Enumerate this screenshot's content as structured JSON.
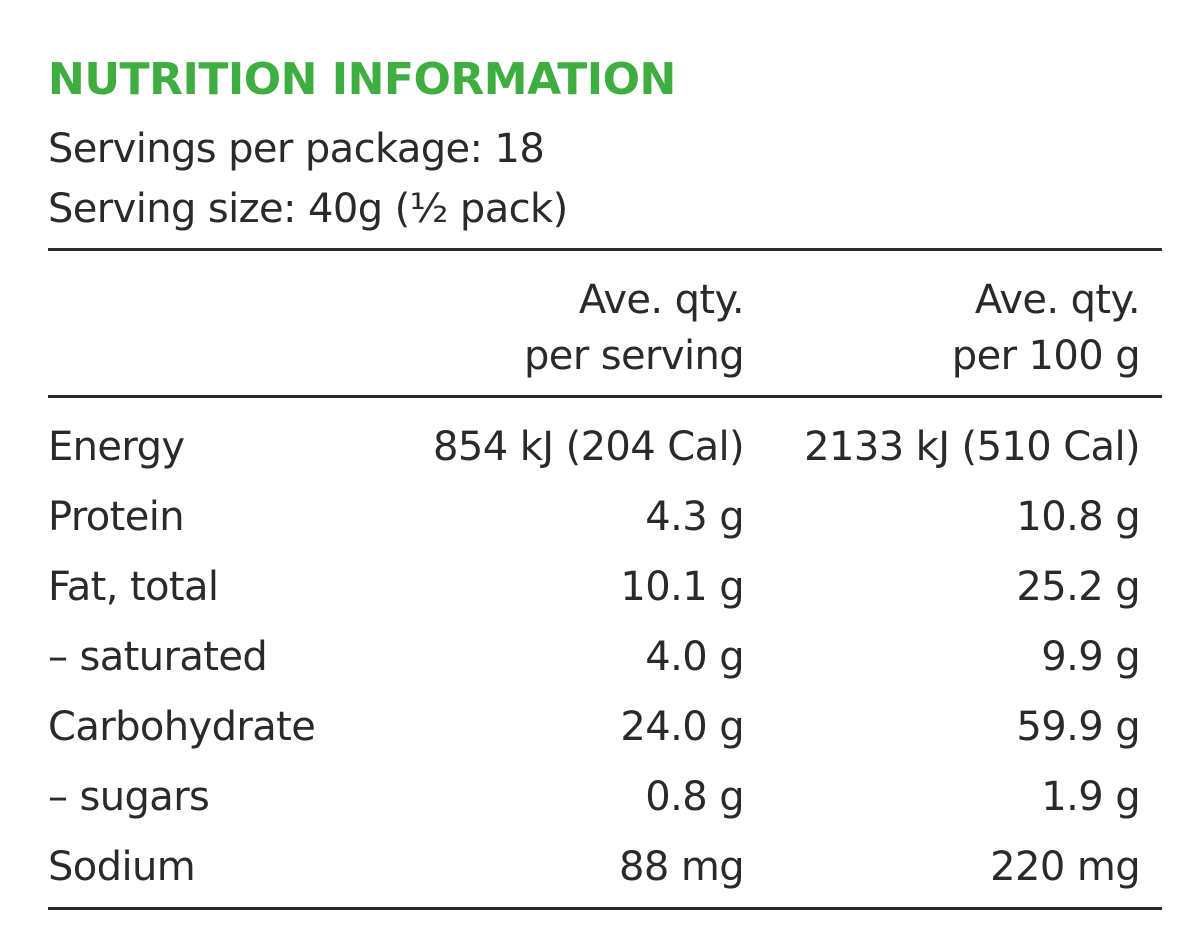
{
  "panel": {
    "title": "NUTRITION INFORMATION",
    "servings_per_package": "Servings per package: 18",
    "serving_size": "Serving size: 40g (½ pack)"
  },
  "table": {
    "col_serving": {
      "line1": "Ave. qty.",
      "line2": "per serving"
    },
    "col_100g": {
      "line1": "Ave. qty.",
      "line2": "per 100 g"
    },
    "rows": [
      {
        "label": "Energy",
        "per_serving": "854 kJ (204 Cal)",
        "per_100g": "2133 kJ (510 Cal)"
      },
      {
        "label": "Protein",
        "per_serving": "4.3 g",
        "per_100g": "10.8 g"
      },
      {
        "label": "Fat, total",
        "per_serving": "10.1 g",
        "per_100g": "25.2 g"
      },
      {
        "label": "– saturated",
        "per_serving": "4.0 g",
        "per_100g": "9.9 g"
      },
      {
        "label": "Carbohydrate",
        "per_serving": "24.0 g",
        "per_100g": "59.9 g"
      },
      {
        "label": "– sugars",
        "per_serving": "0.8 g",
        "per_100g": "1.9 g"
      },
      {
        "label": "Sodium",
        "per_serving": "88 mg",
        "per_100g": "220 mg"
      }
    ]
  },
  "colors": {
    "title": "#3dae3f",
    "text": "#2a2a2a",
    "rule": "#2a2a2a",
    "background": "#ffffff"
  }
}
